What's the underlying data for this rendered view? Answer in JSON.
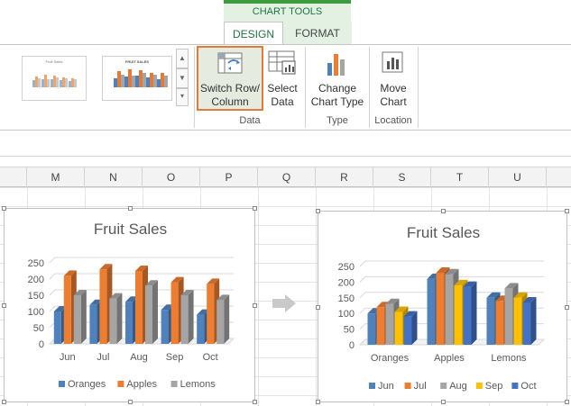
{
  "ribbon": {
    "context_title": "CHART TOOLS",
    "tabs": [
      {
        "label": "DESIGN"
      },
      {
        "label": "FORMAT"
      }
    ],
    "style_thumbs": [
      {
        "title": "Fruit Sales"
      },
      {
        "title": "FRUIT SALES"
      }
    ],
    "buttons": {
      "switch_row_column": {
        "line1": "Switch Row/",
        "line2": "Column"
      },
      "select_data": {
        "line1": "Select",
        "line2": "Data"
      },
      "change_chart_type": {
        "line1": "Change",
        "line2": "Chart Type"
      },
      "move_chart": {
        "line1": "Move",
        "line2": "Chart"
      }
    },
    "groups": {
      "data": "Data",
      "type": "Type",
      "location": "Location"
    }
  },
  "sheet": {
    "columns": [
      "M",
      "N",
      "O",
      "P",
      "Q",
      "R",
      "S",
      "T",
      "U"
    ]
  },
  "colors": {
    "accent": "#217346",
    "oranges": "#4f81bd",
    "apples": "#ed7d31",
    "lemons": "#a5a5a5",
    "jun": "#4f81bd",
    "jul": "#ed7d31",
    "aug": "#a5a5a5",
    "sep": "#ffc000",
    "oct": "#4472c4"
  },
  "chart_data": [
    {
      "type": "bar",
      "title": "Fruit Sales",
      "categories": [
        "Jun",
        "Jul",
        "Aug",
        "Sep",
        "Oct"
      ],
      "series": [
        {
          "name": "Oranges",
          "values": [
            100,
            120,
            130,
            105,
            90
          ]
        },
        {
          "name": "Apples",
          "values": [
            210,
            230,
            225,
            190,
            185
          ]
        },
        {
          "name": "Lemons",
          "values": [
            150,
            140,
            180,
            150,
            135
          ]
        }
      ],
      "yticks": [
        "0",
        "50",
        "100",
        "150",
        "200",
        "250"
      ],
      "ylim": [
        0,
        250
      ],
      "legend": "bottom",
      "grid": true
    },
    {
      "type": "bar",
      "title": "Fruit Sales",
      "categories": [
        "Oranges",
        "Apples",
        "Lemons"
      ],
      "series": [
        {
          "name": "Jun",
          "values": [
            100,
            210,
            150
          ]
        },
        {
          "name": "Jul",
          "values": [
            120,
            230,
            140
          ]
        },
        {
          "name": "Aug",
          "values": [
            130,
            225,
            180
          ]
        },
        {
          "name": "Sep",
          "values": [
            105,
            190,
            150
          ]
        },
        {
          "name": "Oct",
          "values": [
            90,
            185,
            135
          ]
        }
      ],
      "yticks": [
        "0",
        "50",
        "100",
        "150",
        "200",
        "250"
      ],
      "ylim": [
        0,
        250
      ],
      "legend": "bottom",
      "grid": true
    }
  ]
}
